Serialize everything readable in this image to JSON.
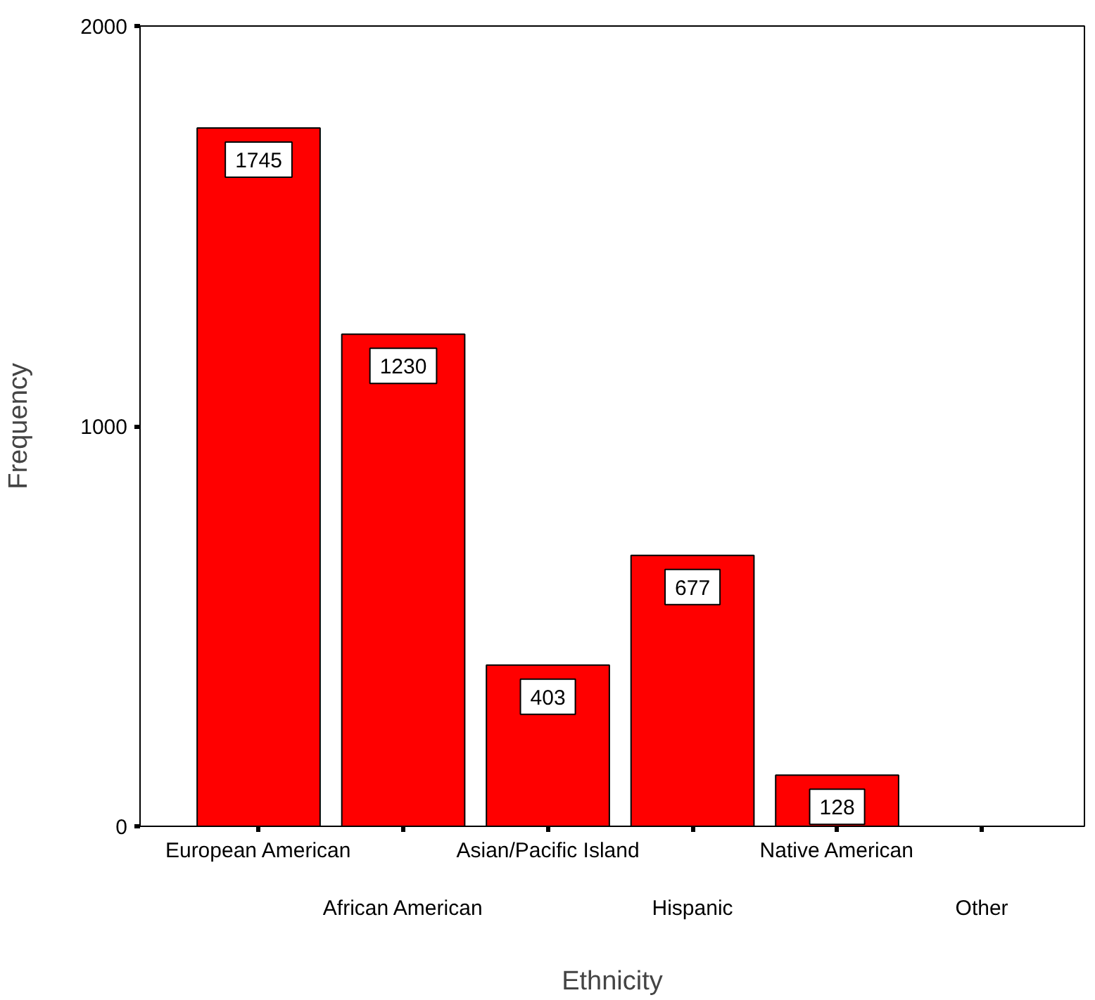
{
  "chart_data": {
    "type": "bar",
    "xlabel": "Ethnicity",
    "ylabel": "Frequency",
    "categories": [
      "European American",
      "African American",
      "Asian/Pacific Island",
      "Hispanic",
      "Native American",
      "Other"
    ],
    "values": [
      1745,
      1230,
      403,
      677,
      128,
      null
    ],
    "color": "#ff0000",
    "ylim": [
      0,
      2000
    ],
    "yticks": [
      0,
      1000,
      2000
    ],
    "grid": false,
    "data_labels": true
  }
}
